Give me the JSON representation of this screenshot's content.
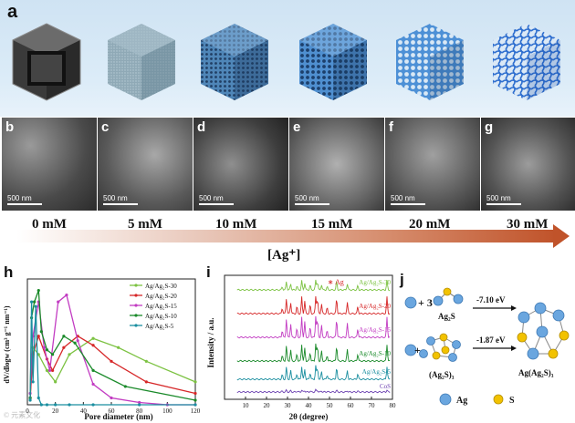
{
  "panel_labels": {
    "a": "a",
    "b": "b",
    "c": "c",
    "d": "d",
    "e": "e",
    "f": "f",
    "g": "g",
    "h": "h",
    "i": "i",
    "j": "j"
  },
  "scale_bar_text": "500 nm",
  "concentrations": [
    "0 mM",
    "5 mM",
    "10 mM",
    "15 mM",
    "20 mM",
    "30 mM"
  ],
  "ag_axis_label": "[Ag⁺]",
  "colors": {
    "Ag/Ag2S-30": "#7cc242",
    "Ag/Ag2S-20": "#d62728",
    "Ag/Ag2S-15": "#c23cc2",
    "Ag/Ag2S-10": "#1a8a2a",
    "Ag/Ag2S-5": "#1b8fa0",
    "CoS": "#6a3fb0",
    "ag_atom": "#6aa6df",
    "s_atom": "#f2c200",
    "gradient_end": "#c0532a"
  },
  "chart_data": [
    {
      "type": "line",
      "panel": "h",
      "xlabel": "Pore diameter (nm)",
      "ylabel": "dV/dlogw (cm³ g⁻¹ nm⁻¹)",
      "xlim": [
        0,
        120
      ],
      "xticks": [
        0,
        20,
        40,
        60,
        80,
        100,
        120
      ],
      "ylim": [
        0,
        0.55
      ],
      "legend_position": "top-right",
      "series": [
        {
          "name": "Ag/Ag₂S-30",
          "x": [
            2,
            4,
            8,
            14,
            20,
            30,
            47,
            65,
            85,
            120
          ],
          "y": [
            0.03,
            0.25,
            0.22,
            0.15,
            0.1,
            0.22,
            0.29,
            0.25,
            0.19,
            0.1
          ]
        },
        {
          "name": "Ag/Ag₂S-20",
          "x": [
            2,
            4,
            8,
            14,
            18,
            26,
            36,
            47,
            60,
            85,
            120
          ],
          "y": [
            0.03,
            0.22,
            0.3,
            0.2,
            0.15,
            0.25,
            0.3,
            0.26,
            0.19,
            0.1,
            0.05
          ]
        },
        {
          "name": "Ag/Ag₂S-15",
          "x": [
            2,
            4,
            8,
            12,
            16,
            22,
            28,
            36,
            47,
            60,
            80,
            100,
            120
          ],
          "y": [
            0.05,
            0.3,
            0.45,
            0.25,
            0.15,
            0.45,
            0.48,
            0.28,
            0.09,
            0.03,
            0.01,
            0.0,
            0.0
          ]
        },
        {
          "name": "Ag/Ag₂S-10",
          "x": [
            2,
            3,
            5,
            8,
            10,
            14,
            18,
            26,
            34,
            47,
            70,
            120
          ],
          "y": [
            0.03,
            0.38,
            0.45,
            0.5,
            0.32,
            0.24,
            0.22,
            0.3,
            0.27,
            0.15,
            0.08,
            0.02
          ]
        },
        {
          "name": "Ag/Ag₂S-5",
          "x": [
            2,
            3,
            4,
            6,
            8,
            10,
            14,
            20,
            30,
            47,
            80,
            120
          ],
          "y": [
            0.02,
            0.45,
            0.1,
            0.43,
            0.03,
            0.0,
            0.0,
            0.0,
            0.0,
            0.0,
            0.0,
            0.0
          ]
        }
      ]
    },
    {
      "type": "line",
      "panel": "i",
      "xlabel": "2θ (degree)",
      "ylabel": "Intensity / a.u.",
      "xlim": [
        0,
        80
      ],
      "xticks": [
        10,
        20,
        30,
        40,
        50,
        60,
        70,
        80
      ],
      "legend_position": "inline",
      "series": [
        {
          "name": "Ag/Ag₂S-30"
        },
        {
          "name": "Ag/Ag₂S-20"
        },
        {
          "name": "Ag/Ag₂S-15"
        },
        {
          "name": "Ag/Ag₂S-10"
        },
        {
          "name": "Ag/Ag₂S-5"
        },
        {
          "name": "CoS"
        }
      ],
      "annotations": [
        {
          "text": "∗ Ag",
          "x": 49
        }
      ]
    }
  ],
  "panel_j": {
    "reactions": [
      {
        "coefficient": "+ 3",
        "reactant": "Ag₂S",
        "energy": "-7.10 eV"
      },
      {
        "coefficient": "+",
        "reactant": "(Ag₂S)₃",
        "energy": "-1.87 eV"
      }
    ],
    "product": "Ag(Ag₂S)₃",
    "legend": [
      "Ag",
      "S"
    ]
  },
  "watermark": "© 元素文化"
}
